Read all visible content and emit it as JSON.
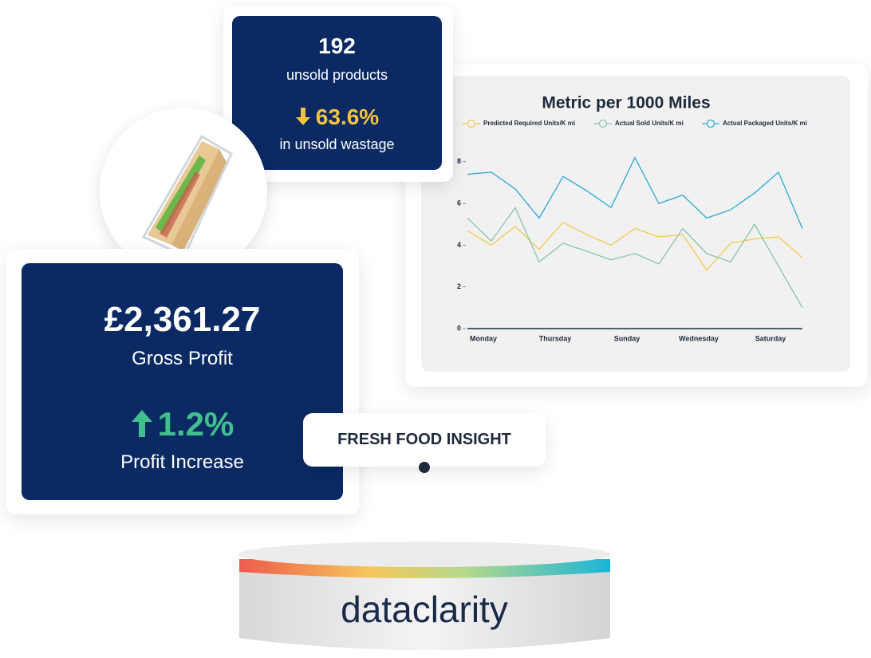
{
  "unsold_card": {
    "count": "192",
    "count_label": "unsold products",
    "change": "63.6%",
    "change_label": "in unsold wastage"
  },
  "profit_card": {
    "amount": "£2,361.27",
    "amount_label": "Gross Profit",
    "change": "1.2%",
    "change_label": "Profit Increase"
  },
  "badge": {
    "label": "FRESH FOOD INSIGHT"
  },
  "brand": {
    "name": "dataclarity"
  },
  "chart_data": {
    "type": "line",
    "title": "Metric per 1000 Miles",
    "categories": [
      "Monday",
      null,
      null,
      "Thursday",
      null,
      null,
      "Sunday",
      null,
      null,
      "Wednesday",
      null,
      null,
      "Saturday",
      null,
      null
    ],
    "series": [
      {
        "name": "Predicted Required Units/K mi",
        "color": "#f5c94c",
        "values": [
          4.7,
          4.0,
          4.9,
          3.8,
          5.1,
          4.5,
          4.0,
          4.8,
          4.4,
          4.5,
          2.8,
          4.1,
          4.3,
          4.4,
          3.4
        ]
      },
      {
        "name": "Actual Sold Units/K mi",
        "color": "#85c7a4",
        "values": [
          5.3,
          4.2,
          5.8,
          3.2,
          4.1,
          3.7,
          3.3,
          3.6,
          3.1,
          4.8,
          3.6,
          3.2,
          5.0,
          3.0,
          1.0
        ]
      },
      {
        "name": "Actual Packaged Units/K mi",
        "color": "#2aa8d6",
        "values": [
          7.4,
          7.5,
          6.7,
          5.3,
          7.3,
          6.6,
          5.8,
          8.2,
          6.0,
          6.4,
          5.3,
          5.7,
          6.5,
          7.5,
          4.8
        ]
      }
    ],
    "ylim": [
      0,
      8.3
    ],
    "yticks": [
      0,
      2,
      4,
      6,
      8
    ],
    "grid": false,
    "legend": "top"
  }
}
